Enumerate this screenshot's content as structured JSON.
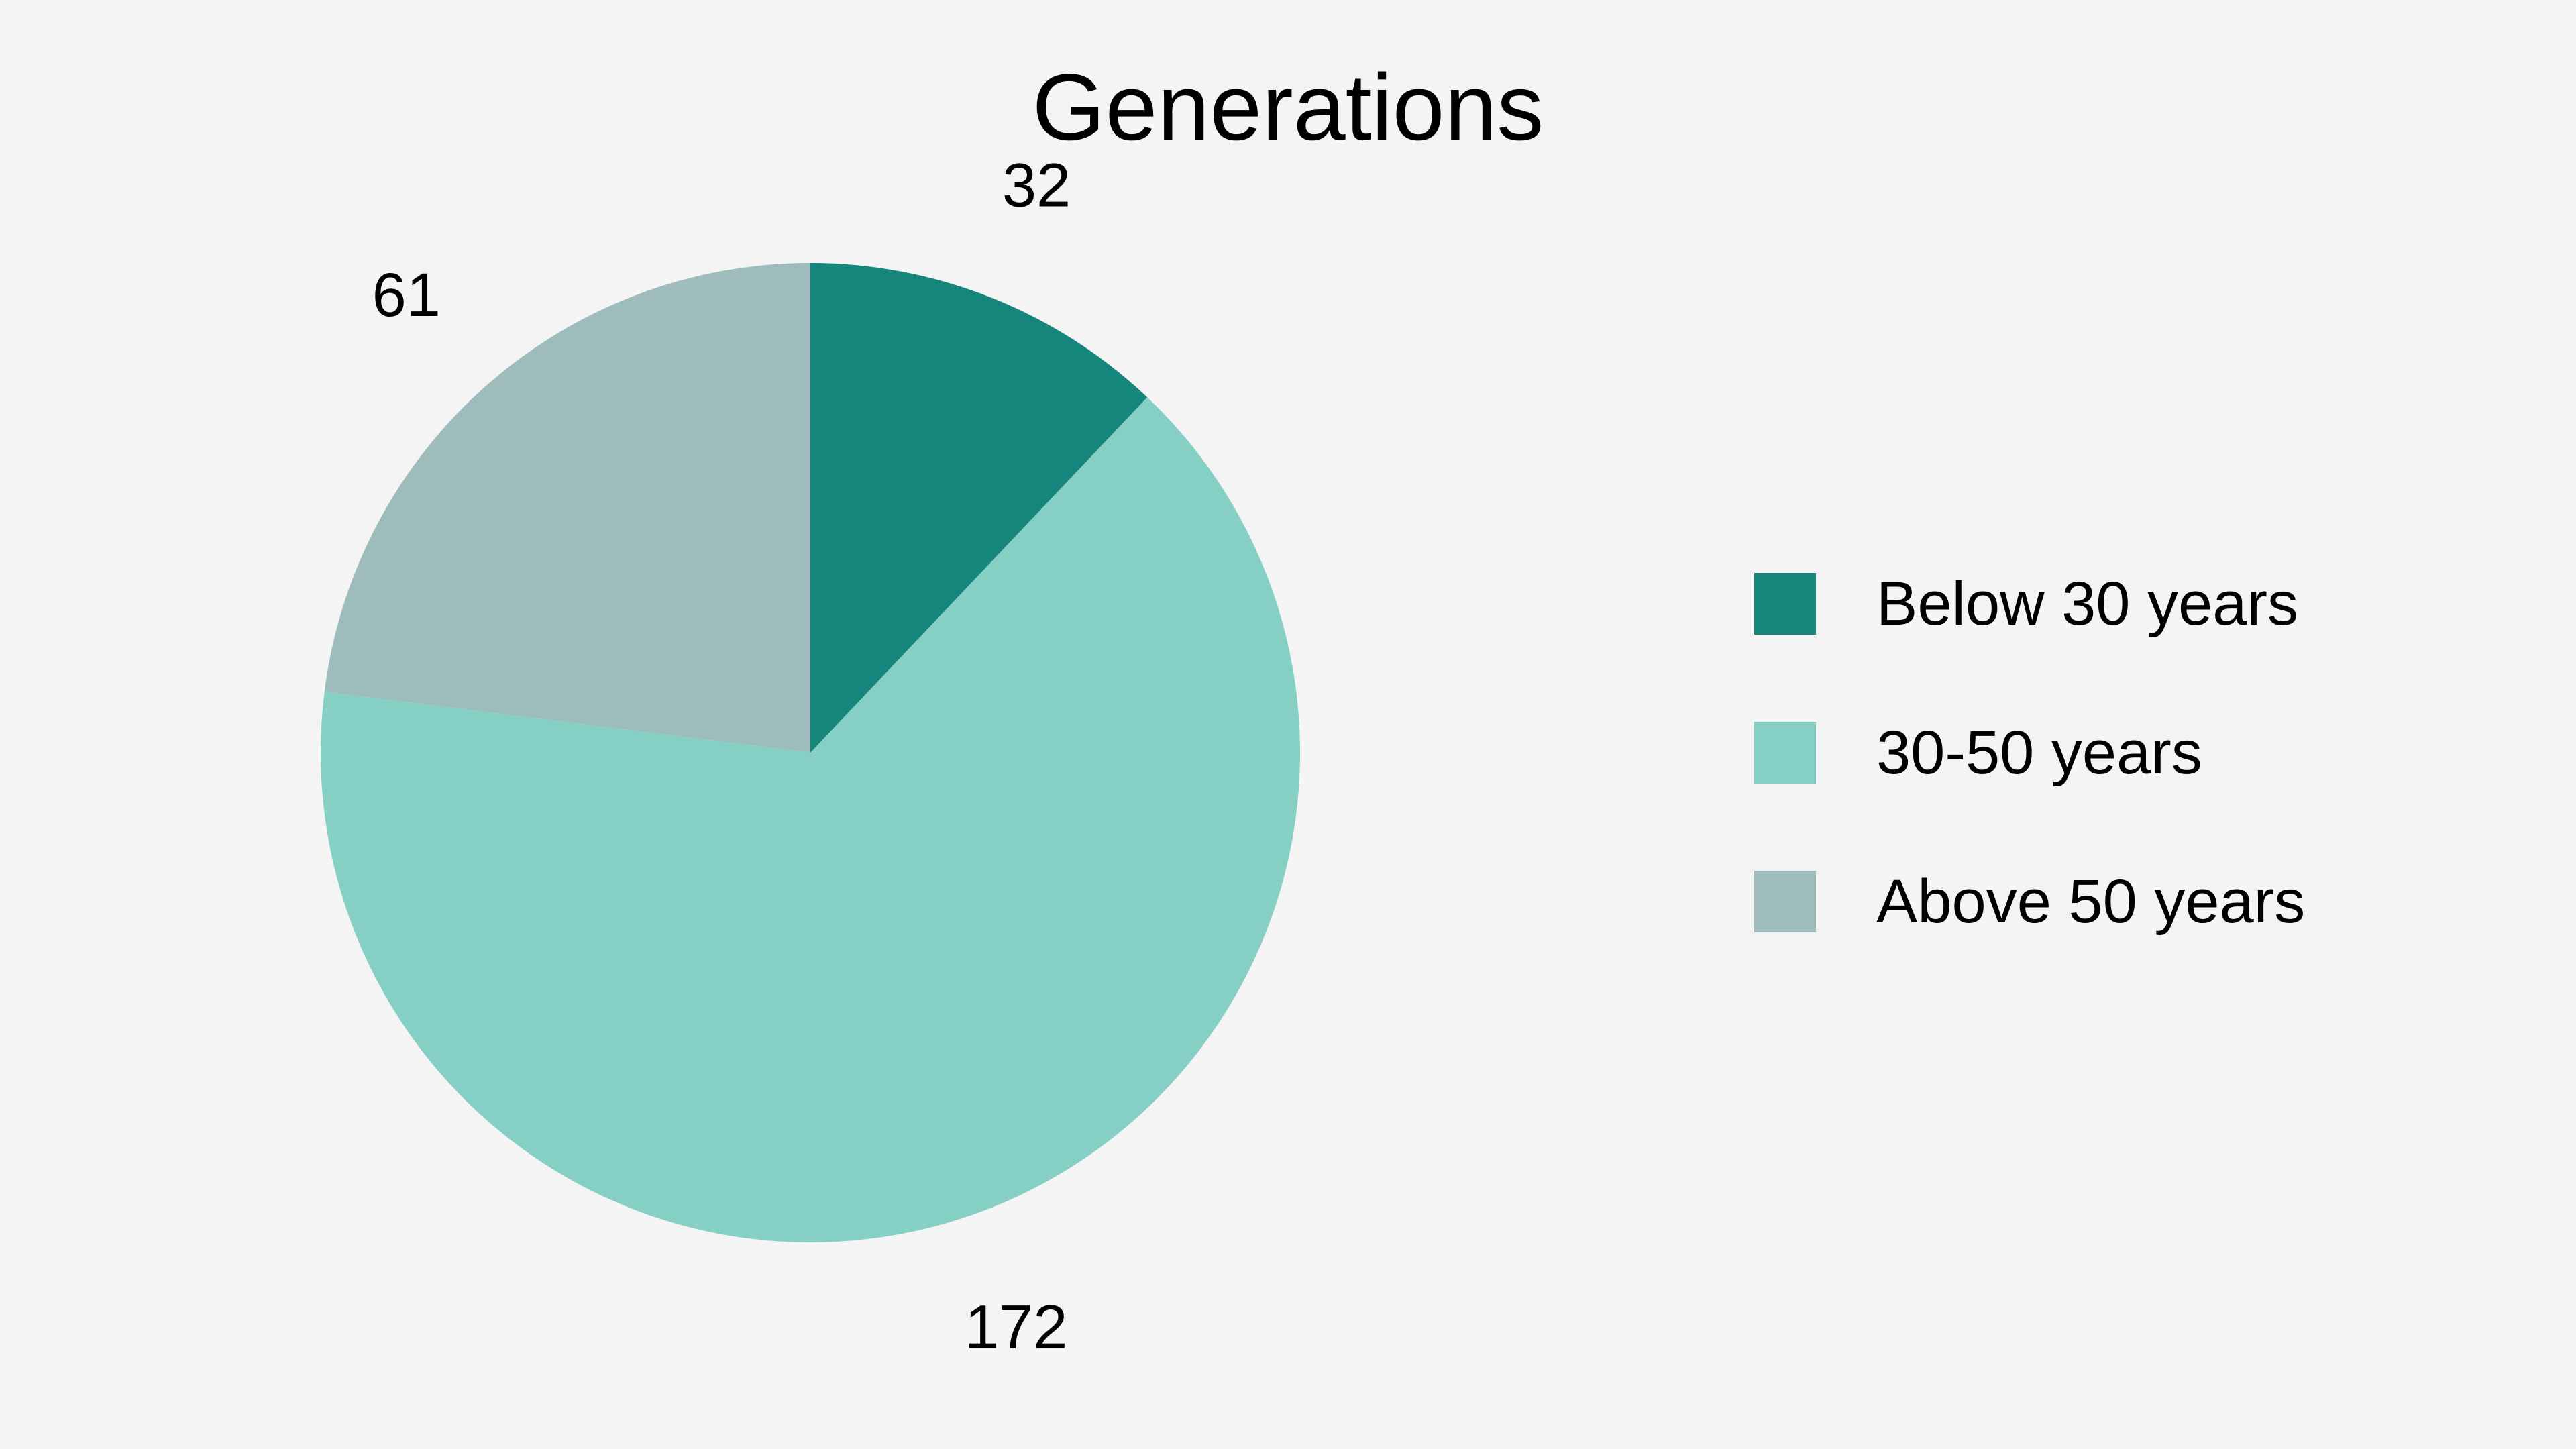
{
  "chart_data": {
    "type": "pie",
    "title": "Generations",
    "categories": [
      "Below 30 years",
      "30-50 years",
      "Above 50 years"
    ],
    "values": [
      32,
      172,
      61
    ],
    "colors": [
      "#16857b",
      "#86cfc5",
      "#9ebcbb"
    ],
    "data_labels": [
      "32",
      "172",
      "61"
    ],
    "start_angle": "12 o'clock",
    "direction": "clockwise",
    "legend_position": "right"
  }
}
